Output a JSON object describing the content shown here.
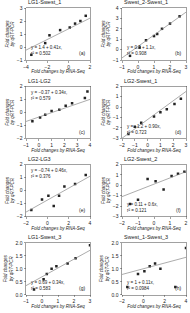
{
  "chart_data": [
    {
      "type": "scatter",
      "title": "LG1-Swest_1",
      "xlabel": "Fold changes by RNA-Seq",
      "ylabel": "Fold changes by qRT-PCR",
      "annotations": [
        "y = 1.4 + 0.41x, r² = 0.502",
        "(a)"
      ],
      "xlim": [
        -4,
        2
      ],
      "ylim": [
        -1,
        3
      ],
      "xticks": [
        -4,
        -2,
        0,
        2
      ],
      "yticks": [
        -1,
        0,
        1,
        2,
        3
      ],
      "grid": false,
      "series": [
        {
          "type": "scatter",
          "marker": "square",
          "color": "#222222",
          "x": [
            -3.5,
            -2.2,
            -1.8,
            -0.8,
            0.1,
            0.6,
            1.1,
            1.6
          ],
          "values": [
            -0.6,
            0.3,
            0.9,
            1.3,
            1.5,
            1.8,
            2.0,
            2.4
          ]
        },
        {
          "type": "line",
          "color": "#888888",
          "x": [
            -4,
            2
          ],
          "values": [
            -0.24,
            2.22
          ]
        }
      ]
    },
    {
      "type": "scatter",
      "title": "Swest_2-Swest_1",
      "xlabel": "Fold changes by RNA-Seq",
      "ylabel": "Fold changes by qRT-PCR",
      "annotations": [
        "y = 0.3 + 1.1x, r² = 0.908",
        "(b)"
      ],
      "xlim": [
        -1,
        3
      ],
      "ylim": [
        -1,
        4
      ],
      "xticks": [
        -1,
        0,
        1,
        2,
        3
      ],
      "yticks": [
        -1,
        0,
        1,
        2,
        3,
        4
      ],
      "grid": false,
      "series": [
        {
          "type": "scatter",
          "marker": "square",
          "color": "#222222",
          "x": [
            -0.5,
            0.1,
            0.5,
            1.0,
            1.2,
            1.5,
            2.0,
            2.6
          ],
          "values": [
            -0.6,
            0.2,
            0.9,
            1.3,
            1.5,
            2.0,
            2.5,
            3.2
          ]
        },
        {
          "type": "line",
          "color": "#888888",
          "x": [
            -1,
            3
          ],
          "values": [
            -0.8,
            3.6
          ]
        }
      ]
    },
    {
      "type": "scatter",
      "title": "LG1-LG2",
      "xlabel": "Fold changes by RNA-Seq",
      "ylabel": "Fold changes by qRT-PCR",
      "annotations": [
        "y = −0.37 + 0.34x, r² = 0.579",
        "(c)"
      ],
      "xlim": [
        -1,
        4
      ],
      "ylim": [
        -2,
        2
      ],
      "xticks": [
        -1,
        0,
        1,
        2,
        3,
        4
      ],
      "yticks": [
        -2,
        -1,
        0,
        1,
        2
      ],
      "grid": false,
      "series": [
        {
          "type": "scatter",
          "marker": "square",
          "color": "#222222",
          "x": [
            -0.5,
            0.1,
            0.5,
            1.0,
            1.6,
            2.1,
            2.6,
            3.6,
            3.8
          ],
          "values": [
            -0.7,
            -0.4,
            -0.2,
            0.1,
            0.2,
            0.5,
            0.7,
            1.1,
            1.6
          ]
        },
        {
          "type": "line",
          "color": "#888888",
          "x": [
            -1,
            4
          ],
          "values": [
            -0.71,
            0.99
          ]
        }
      ]
    },
    {
      "type": "scatter",
      "title": "LG2-Swest_1",
      "xlabel": "Fold changes by RNA-Seq",
      "ylabel": "Fold changes by qRT-PCR",
      "annotations": [
        "y = −1.2 + 0.90x, r² = 0.723",
        "(d)"
      ],
      "xlim": [
        -2,
        3
      ],
      "ylim": [
        -3,
        2
      ],
      "xticks": [
        -2,
        -1,
        0,
        1,
        2,
        3
      ],
      "yticks": [
        -3,
        -2,
        -1,
        0,
        1,
        2
      ],
      "grid": false,
      "series": [
        {
          "type": "scatter",
          "marker": "square",
          "color": "#222222",
          "x": [
            -1.5,
            -1.0,
            -0.5,
            0.5,
            1.0,
            1.5,
            2.1,
            2.6
          ],
          "values": [
            -2.6,
            -1.9,
            -1.5,
            -0.9,
            -0.5,
            -0.2,
            0.3,
            0.8
          ]
        },
        {
          "type": "line",
          "color": "#888888",
          "x": [
            -2,
            3
          ],
          "values": [
            -3,
            1.5
          ]
        }
      ]
    },
    {
      "type": "scatter",
      "title": "LG2-LG3",
      "xlabel": "Fold changes by RNA-Seq",
      "ylabel": "Fold changes by qRT-PCR",
      "annotations": [
        "y = −0.74 + 0.46x, r² = 0.376",
        "(e)"
      ],
      "xlim": [
        -2,
        4
      ],
      "ylim": [
        -2,
        2
      ],
      "xticks": [
        -2,
        0,
        2,
        4
      ],
      "yticks": [
        -2,
        -1,
        0,
        1,
        2
      ],
      "grid": false,
      "series": [
        {
          "type": "scatter",
          "marker": "square",
          "color": "#222222",
          "x": [
            -1.5,
            -0.5,
            0.1,
            0.6,
            1.1,
            1.6,
            2.6,
            3.6
          ],
          "values": [
            -1.5,
            -0.7,
            -0.4,
            -1.2,
            -0.4,
            0.3,
            0.5,
            1.2
          ]
        },
        {
          "type": "line",
          "color": "#888888",
          "x": [
            -2,
            4
          ],
          "values": [
            -1.66,
            1.1
          ]
        }
      ]
    },
    {
      "type": "scatter",
      "title": "LG2-Swest_2",
      "xlabel": "Fold changes by RNA-Seq",
      "ylabel": "Fold changes by qRT-PCR",
      "annotations": [
        "y = 0.11 + 0.6x, r² = 0.121",
        "(f)"
      ],
      "xlim": [
        -2,
        2
      ],
      "ylim": [
        -3,
        2
      ],
      "xticks": [
        -2,
        -1,
        0,
        1,
        2
      ],
      "yticks": [
        -3,
        -2,
        -1,
        0,
        1,
        2
      ],
      "grid": false,
      "series": [
        {
          "type": "scatter",
          "marker": "square",
          "color": "#222222",
          "x": [
            -1.5,
            -1.0,
            -0.4,
            0.1,
            0.6,
            1.1,
            1.5,
            1.9
          ],
          "values": [
            -1.8,
            -1.4,
            0.6,
            0.4,
            -0.4,
            0.9,
            1.1,
            1.3
          ]
        },
        {
          "type": "line",
          "color": "#888888",
          "x": [
            -2,
            2
          ],
          "values": [
            -1.09,
            1.31
          ]
        }
      ]
    },
    {
      "type": "scatter",
      "title": "LG1-Swest_3",
      "xlabel": "Fold changes by RNA-Seq",
      "ylabel": "Fold changes by qRT-PCR",
      "annotations": [
        "y = 0.69 + 0.34x, r² = 0.583",
        "(g)"
      ],
      "xlim": [
        -1,
        3
      ],
      "ylim": [
        0,
        2
      ],
      "xticks": [
        -1,
        0,
        1,
        2,
        3
      ],
      "yticks": [
        {
          "value": 0,
          "label": "0.0"
        },
        0.5,
        {
          "value": 1,
          "label": "1.0"
        },
        1.5,
        {
          "value": 2,
          "label": "2.0"
        }
      ],
      "grid": false,
      "series": [
        {
          "type": "scatter",
          "marker": "square",
          "color": "#222222",
          "x": [
            -0.5,
            0.1,
            0.3,
            0.6,
            0.9,
            1.6,
            2.1,
            3.0
          ],
          "values": [
            0.2,
            0.6,
            0.8,
            1.0,
            1.1,
            1.2,
            1.4,
            1.9
          ]
        },
        {
          "type": "line",
          "color": "#888888",
          "x": [
            -1,
            3
          ],
          "values": [
            0.35,
            1.71
          ]
        }
      ]
    },
    {
      "type": "scatter",
      "title": "Swest_1-Swest_3",
      "xlabel": "Fold changes by RNA-Seq",
      "ylabel": "Fold changes by qRT-PCR",
      "annotations": [
        "y = 1 + 0.11x, r² = 0.0984",
        "(h)"
      ],
      "xlim": [
        -2,
        4
      ],
      "ylim": [
        0,
        2
      ],
      "xticks": [
        -2,
        0,
        2,
        4
      ],
      "yticks": [
        {
          "value": 0,
          "label": "0.0"
        },
        0.5,
        {
          "value": 1,
          "label": "1.0"
        },
        1.5,
        {
          "value": 2,
          "label": "2.0"
        }
      ],
      "grid": false,
      "series": [
        {
          "type": "scatter",
          "marker": "square",
          "color": "#222222",
          "x": [
            -1.5,
            -0.5,
            0.1,
            0.6,
            1.1,
            1.6,
            3.0,
            4.0
          ],
          "values": [
            0.3,
            0.8,
            0.9,
            1.1,
            1.2,
            1.0,
            0.3,
            1.8
          ]
        },
        {
          "type": "line",
          "color": "#888888",
          "x": [
            -2,
            4
          ],
          "values": [
            0.78,
            1.44
          ]
        }
      ]
    }
  ]
}
